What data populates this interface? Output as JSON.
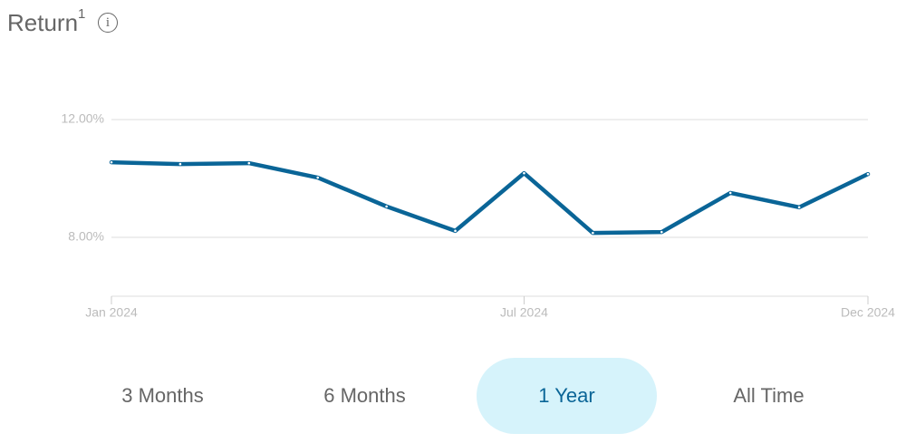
{
  "header": {
    "title": "Return",
    "title_note": "1",
    "info_icon": "i"
  },
  "chart_data": {
    "type": "line",
    "categories": [
      "Jan 2024",
      null,
      null,
      null,
      null,
      null,
      "Jul 2024",
      null,
      null,
      null,
      null,
      "Dec 2024"
    ],
    "series": [
      {
        "color": "#0a6597",
        "values": [
          10.55,
          10.49,
          10.52,
          10.03,
          9.05,
          8.22,
          10.18,
          8.15,
          8.18,
          9.51,
          9.02,
          10.15
        ]
      }
    ],
    "ylim": [
      6,
      14
    ],
    "yticks": [
      {
        "value": 8,
        "label": "8.00%"
      },
      {
        "value": 12,
        "label": "12.00%"
      }
    ],
    "grid": true
  },
  "controls": {
    "options": [
      "3 Months",
      "6 Months",
      "1 Year",
      "All Time"
    ],
    "selected": 2
  }
}
